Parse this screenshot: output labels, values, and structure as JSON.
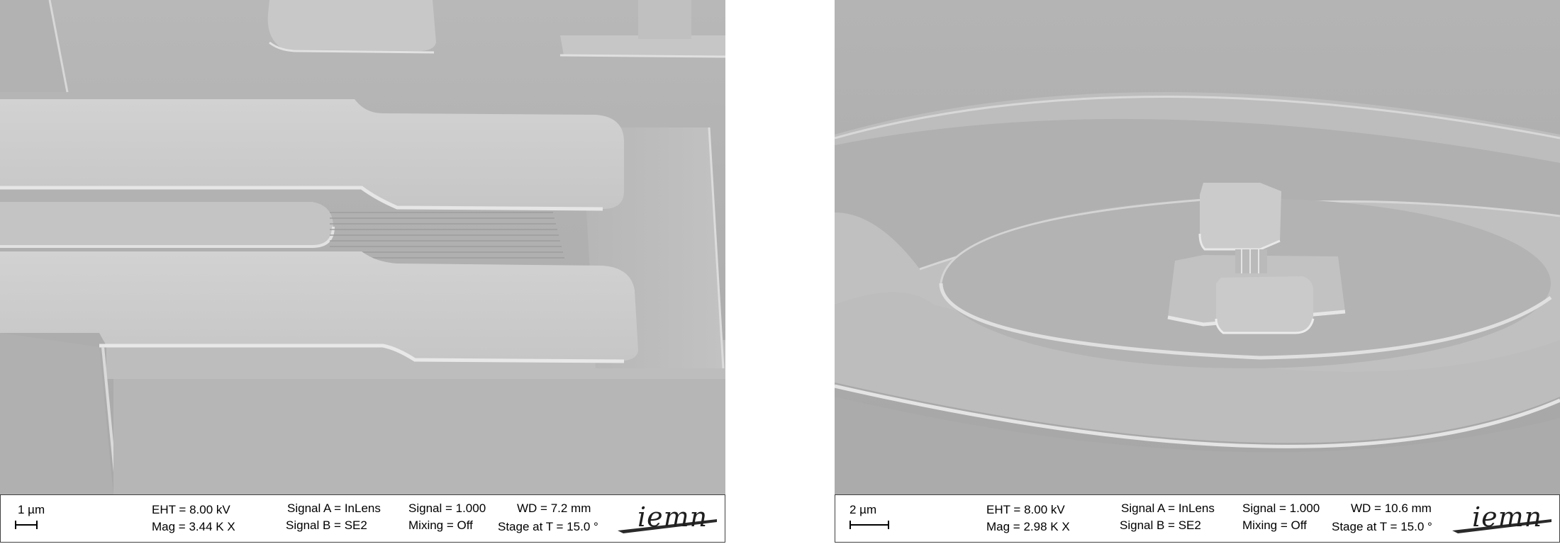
{
  "panels": [
    {
      "scale_label": "1 µm",
      "eht": "EHT =  8.00 kV",
      "mag": "Mag =   3.44 K X",
      "signal_a": "Signal A = InLens",
      "signal_b": "Signal B = SE2",
      "signal": "Signal =  1.000",
      "mixing": "Mixing = Off",
      "wd": "WD =  7.2 mm",
      "stage": "Stage at T =  15.0 °",
      "logo_text": "iemn"
    },
    {
      "scale_label": "2 µm",
      "eht": "EHT =  8.00 kV",
      "mag": "Mag =   2.98 K X",
      "signal_a": "Signal A = InLens",
      "signal_b": "Signal B = SE2",
      "signal": "Signal =  1.000",
      "mixing": "Mixing = Off",
      "wd": "WD = 10.6 mm",
      "stage": "Stage at T =  15.0 °",
      "logo_text": "iemn"
    }
  ]
}
